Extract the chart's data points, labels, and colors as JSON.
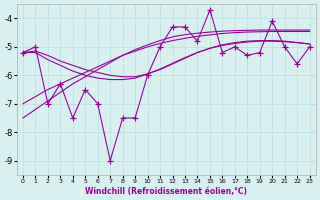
{
  "xlabel": "Windchill (Refroidissement éolien,°C)",
  "x": [
    0,
    1,
    2,
    3,
    4,
    5,
    6,
    7,
    8,
    9,
    10,
    11,
    12,
    13,
    14,
    15,
    16,
    17,
    18,
    19,
    20,
    21,
    22,
    23
  ],
  "y_main": [
    -5.2,
    -5.0,
    -7.0,
    -6.3,
    -7.5,
    -6.5,
    -7.0,
    -9.0,
    -7.5,
    -7.5,
    -6.0,
    -5.0,
    -4.3,
    -4.3,
    -4.8,
    -3.7,
    -5.2,
    -5.0,
    -5.3,
    -5.2,
    -4.1,
    -5.0,
    -5.6,
    -5.0
  ],
  "y_curve1": [
    -5.2,
    -5.15,
    -5.3,
    -5.5,
    -5.65,
    -5.8,
    -5.9,
    -6.0,
    -6.05,
    -6.05,
    -5.95,
    -5.8,
    -5.6,
    -5.4,
    -5.2,
    -5.05,
    -4.95,
    -4.88,
    -4.83,
    -4.8,
    -4.8,
    -4.82,
    -4.85,
    -4.9
  ],
  "y_curve2": [
    -5.2,
    -5.2,
    -5.45,
    -5.65,
    -5.85,
    -6.0,
    -6.1,
    -6.15,
    -6.15,
    -6.1,
    -5.95,
    -5.78,
    -5.58,
    -5.38,
    -5.2,
    -5.05,
    -4.93,
    -4.85,
    -4.8,
    -4.78,
    -4.78,
    -4.8,
    -4.85,
    -4.9
  ],
  "y_linear1": [
    -7.0,
    -6.75,
    -6.5,
    -6.3,
    -6.1,
    -5.9,
    -5.7,
    -5.5,
    -5.3,
    -5.15,
    -5.0,
    -4.88,
    -4.78,
    -4.7,
    -4.63,
    -4.58,
    -4.53,
    -4.5,
    -4.48,
    -4.47,
    -4.46,
    -4.46,
    -4.46,
    -4.46
  ],
  "y_linear2": [
    -7.5,
    -7.2,
    -6.9,
    -6.6,
    -6.3,
    -6.05,
    -5.8,
    -5.55,
    -5.3,
    -5.1,
    -4.93,
    -4.78,
    -4.65,
    -4.57,
    -4.52,
    -4.48,
    -4.45,
    -4.43,
    -4.42,
    -4.41,
    -4.41,
    -4.41,
    -4.41,
    -4.41
  ],
  "line_color": "#990099",
  "bg_color": "#d9f0f0",
  "grid_color": "#b8dede",
  "ylim": [
    -9.5,
    -3.5
  ],
  "yticks": [
    -9,
    -8,
    -7,
    -6,
    -5,
    -4
  ],
  "xlim": [
    -0.5,
    23.5
  ]
}
